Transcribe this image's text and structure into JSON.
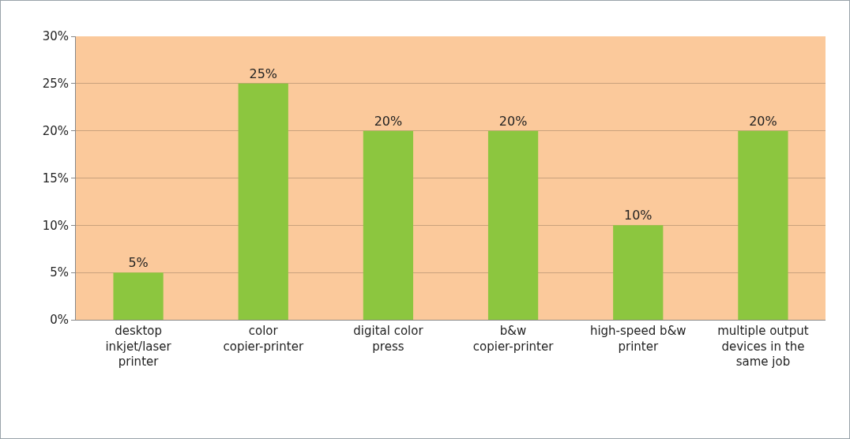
{
  "chart_data": {
    "type": "bar",
    "categories": [
      "desktop inkjet/laser printer",
      "color copier-printer",
      "digital color press",
      "b&w copier-printer",
      "high-speed b&w printer",
      "multiple output devices in the same job"
    ],
    "values": [
      5,
      25,
      20,
      20,
      10,
      20
    ],
    "color": "#8cc63f",
    "ylim": [
      0,
      30
    ],
    "yticks": [
      {
        "value": 0,
        "label": "0%"
      },
      {
        "value": 5,
        "label": "5%"
      },
      {
        "value": 10,
        "label": "10%"
      },
      {
        "value": 15,
        "label": "15%"
      },
      {
        "value": 20,
        "label": "20%"
      },
      {
        "value": 25,
        "label": "25%"
      },
      {
        "value": 30,
        "label": "30%"
      }
    ],
    "value_labels": [
      "5%",
      "25%",
      "20%",
      "20%",
      "10%",
      "20%"
    ],
    "grid": "y"
  }
}
